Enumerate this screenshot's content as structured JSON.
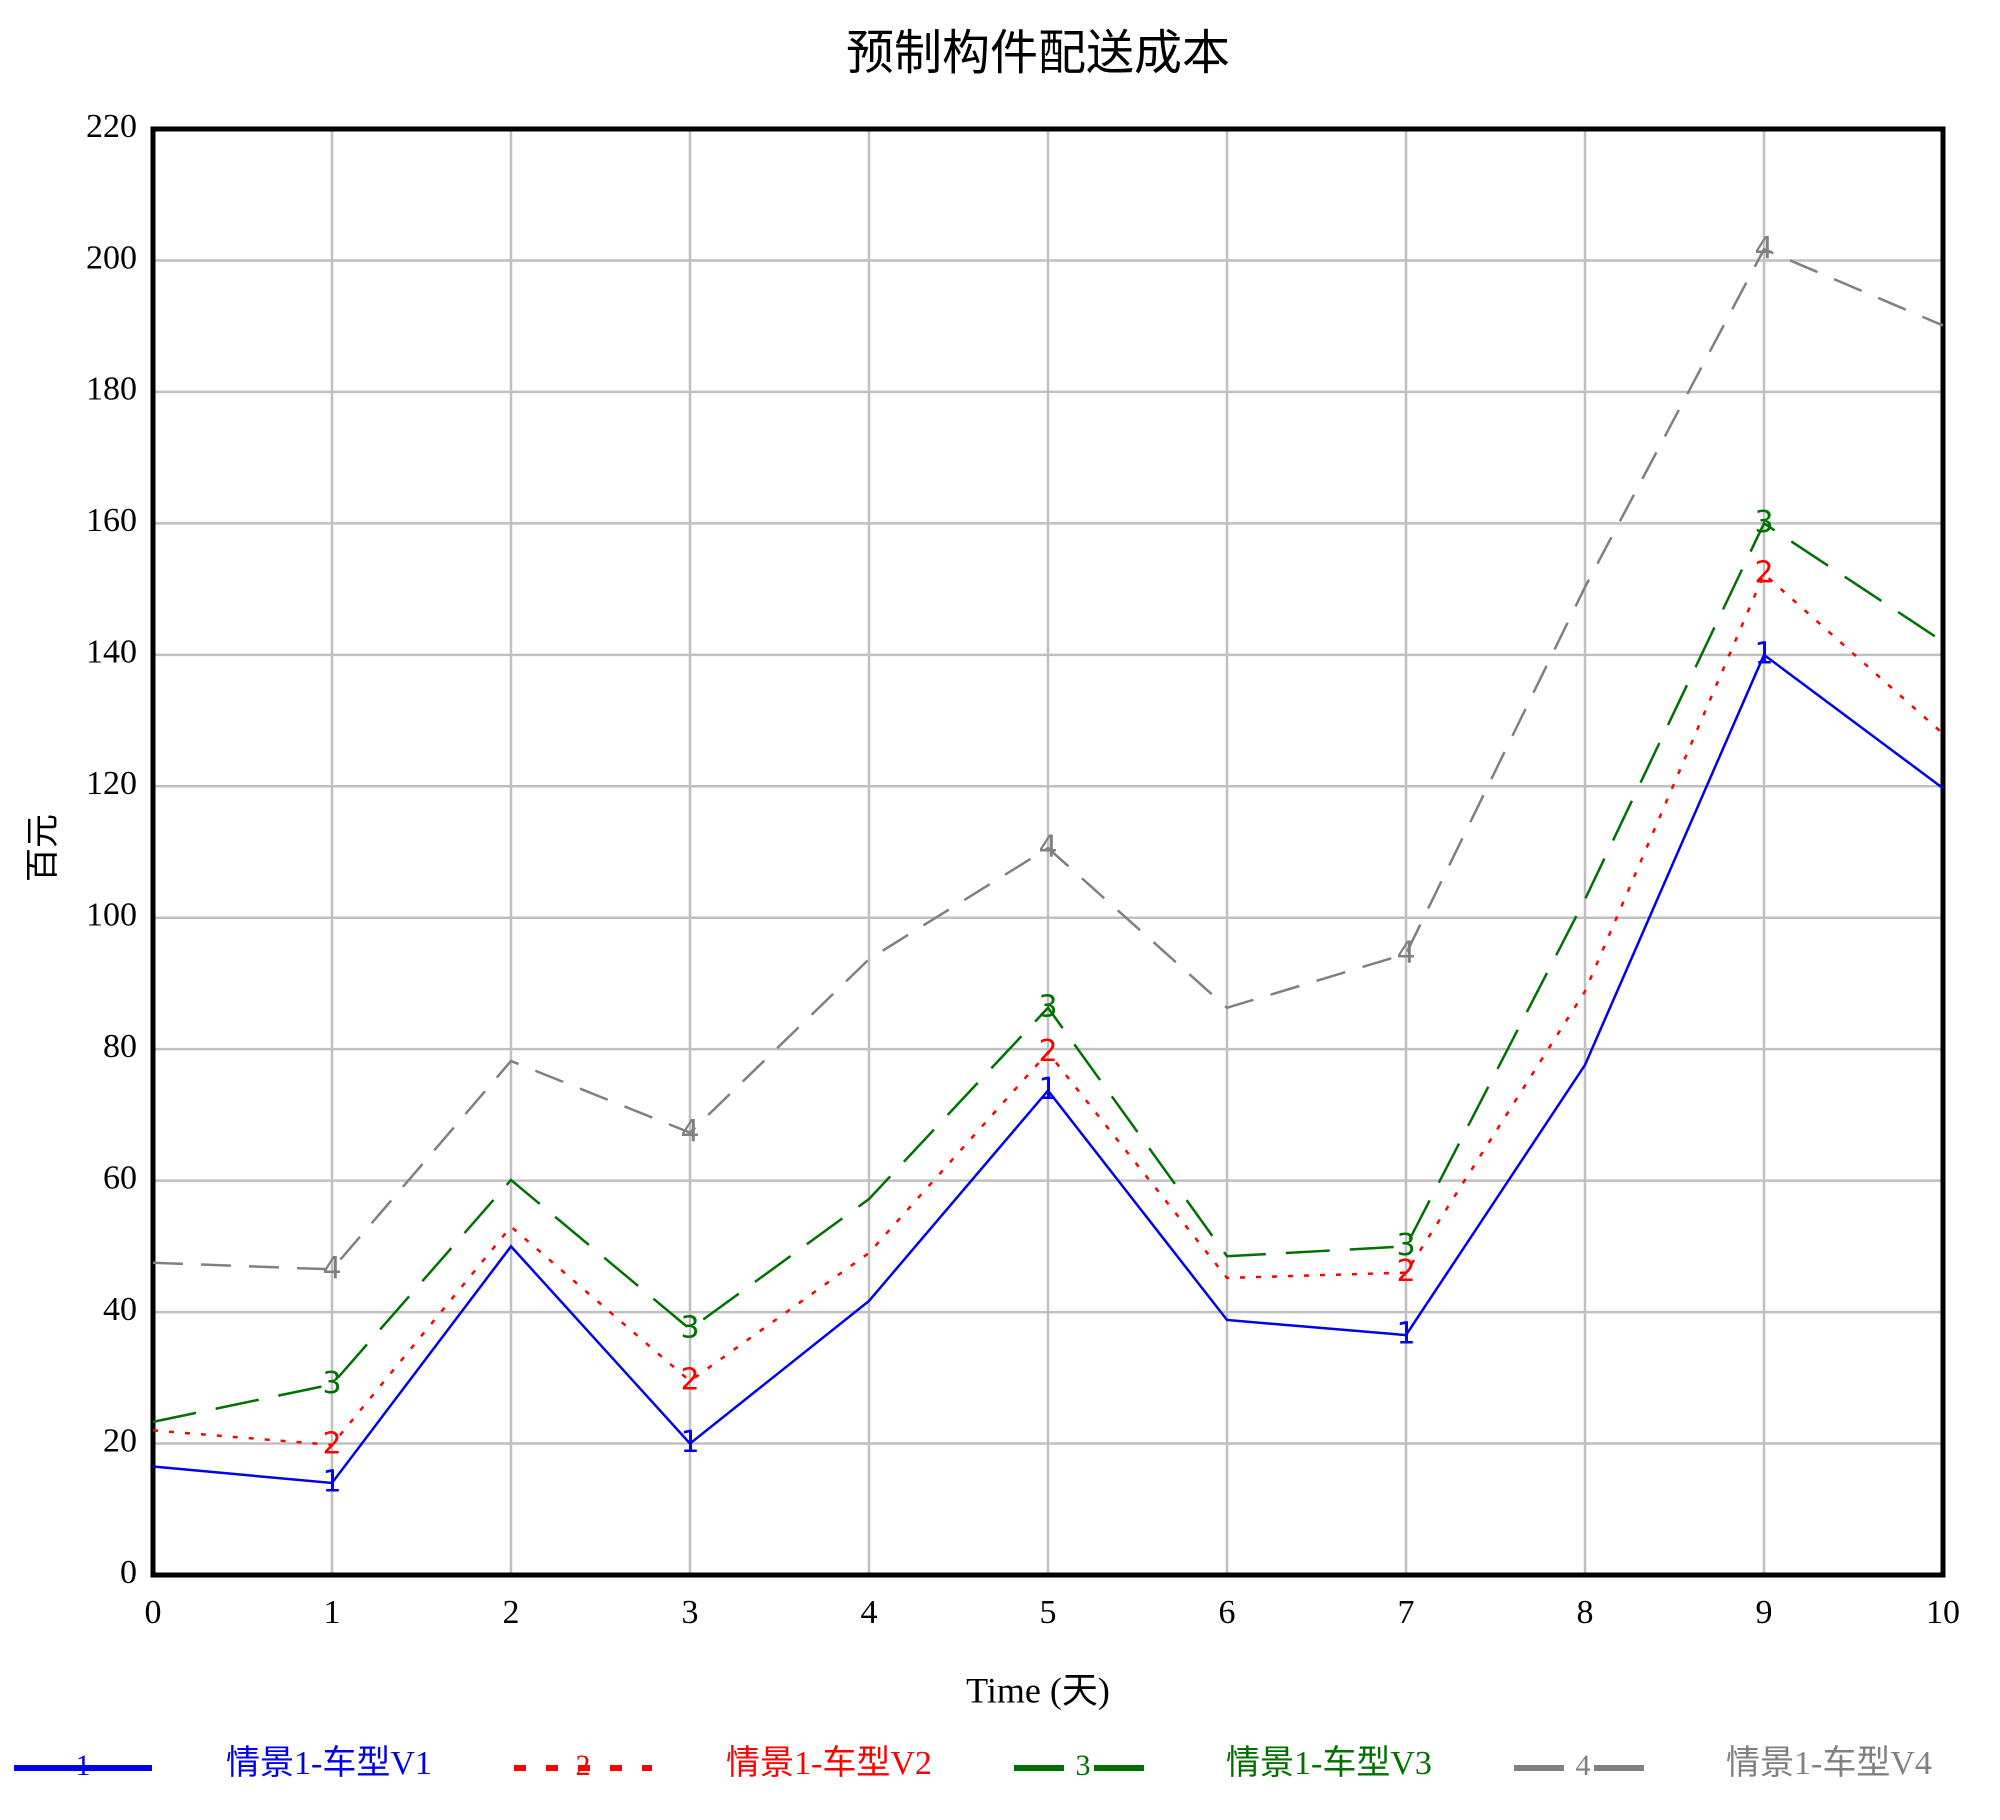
{
  "chart_data": {
    "type": "line",
    "title": "预制构件配送成本",
    "x_label": "Time (天)",
    "y_label": "百元",
    "x": [
      0,
      1,
      2,
      3,
      4,
      5,
      6,
      7,
      8,
      9,
      10
    ],
    "xlim": [
      0,
      10
    ],
    "xticks": [
      0,
      1,
      2,
      3,
      4,
      5,
      6,
      7,
      8,
      9,
      10
    ],
    "ylim": [
      0,
      220
    ],
    "yticks": [
      0,
      20,
      40,
      60,
      80,
      100,
      120,
      140,
      160,
      180,
      200,
      220
    ],
    "grid": true,
    "legend": "bottom",
    "series": [
      {
        "name": "情景1-车型V1",
        "marker": "1",
        "color": "#0000ee",
        "line_style": "solid",
        "values": [
          16.5,
          14,
          50,
          20,
          41.7,
          73.7,
          38.8,
          36.5,
          77.6,
          140,
          119.7
        ]
      },
      {
        "name": "情景1-车型V2",
        "marker": "2",
        "color": "#ff0000",
        "line_style": "dotted",
        "values": [
          22,
          19.8,
          53,
          29.5,
          49,
          79.5,
          45.2,
          46,
          88.8,
          152.3,
          128
        ]
      },
      {
        "name": "情景1-车型V3",
        "marker": "3",
        "color": "#007000",
        "line_style": "long-dash",
        "values": [
          23.3,
          29,
          60.1,
          37.4,
          57.2,
          86.3,
          48.5,
          50,
          102.8,
          160,
          142
        ]
      },
      {
        "name": "情景1-车型V4",
        "marker": "4",
        "color": "#808080",
        "line_style": "dashed",
        "values": [
          47.5,
          46.5,
          78.2,
          67.3,
          93.7,
          110.6,
          86.3,
          94.5,
          150.3,
          201.7,
          190.1
        ]
      }
    ]
  }
}
